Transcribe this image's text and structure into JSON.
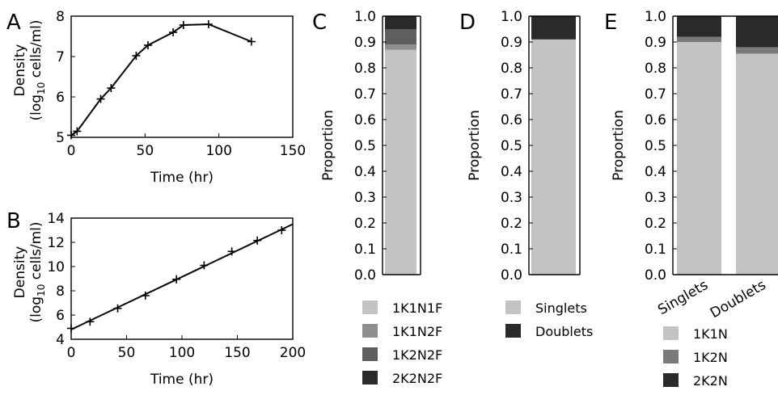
{
  "panels": [
    {
      "id": "A",
      "panel_label": "A",
      "chart_data": {
        "type": "line",
        "xlabel": "Time (hr)",
        "ylabel_main": "Density",
        "ylabel_sub_prefix": "(log",
        "ylabel_sub_sub": "10",
        "ylabel_sub_suffix": " cells/ml)",
        "xlim": [
          0,
          150
        ],
        "ylim": [
          5,
          8
        ],
        "xticks": [
          0,
          50,
          100,
          150
        ],
        "yticks": [
          5,
          6,
          7,
          8
        ],
        "marker": "plus",
        "x": [
          0,
          4,
          20,
          27,
          44,
          52,
          69,
          76,
          93,
          122
        ],
        "y": [
          5.05,
          5.15,
          5.95,
          6.22,
          7.02,
          7.28,
          7.6,
          7.78,
          7.8,
          7.37
        ]
      }
    },
    {
      "id": "B",
      "panel_label": "B",
      "chart_data": {
        "type": "line",
        "xlabel": "Time (hr)",
        "ylabel_main": "Density",
        "ylabel_sub_prefix": "(log",
        "ylabel_sub_sub": "10",
        "ylabel_sub_suffix": " cells/ml)",
        "xlim": [
          0,
          200
        ],
        "ylim": [
          4,
          14
        ],
        "xticks": [
          0,
          50,
          100,
          150,
          200
        ],
        "yticks": [
          4,
          6,
          8,
          10,
          12,
          14
        ],
        "marker": "plus",
        "x": [
          0,
          17,
          42,
          67,
          95,
          120,
          145,
          168,
          190
        ],
        "y": [
          4.9,
          5.45,
          6.55,
          7.6,
          8.95,
          10.1,
          11.25,
          12.15,
          13.0
        ],
        "fit_line": {
          "x": [
            0,
            200
          ],
          "y": [
            4.8,
            13.5
          ]
        }
      }
    },
    {
      "id": "C",
      "panel_label": "C",
      "chart_data": {
        "type": "bar",
        "stacked": true,
        "ylabel": "Proportion",
        "ylim": [
          0,
          1
        ],
        "yticks": [
          "0.0",
          "0.1",
          "0.2",
          "0.3",
          "0.4",
          "0.5",
          "0.6",
          "0.7",
          "0.8",
          "0.9",
          "1.0"
        ],
        "categories": [
          ""
        ],
        "series": [
          {
            "name": "1K1N1F",
            "color": "#c3c3c3",
            "values": [
              0.87
            ]
          },
          {
            "name": "1K1N2F",
            "color": "#8e8e8e",
            "values": [
              0.02
            ]
          },
          {
            "name": "1K2N2F",
            "color": "#5e5e5e",
            "values": [
              0.06
            ]
          },
          {
            "name": "2K2N2F",
            "color": "#2a2a2a",
            "values": [
              0.05
            ]
          }
        ]
      }
    },
    {
      "id": "D",
      "panel_label": "D",
      "chart_data": {
        "type": "bar",
        "stacked": true,
        "ylabel": "Proportion",
        "ylim": [
          0,
          1
        ],
        "yticks": [
          "0.0",
          "0.1",
          "0.2",
          "0.3",
          "0.4",
          "0.5",
          "0.6",
          "0.7",
          "0.8",
          "0.9",
          "1.0"
        ],
        "categories": [
          ""
        ],
        "series": [
          {
            "name": "Singlets",
            "color": "#c3c3c3",
            "values": [
              0.91
            ]
          },
          {
            "name": "Doublets",
            "color": "#2a2a2a",
            "values": [
              0.09
            ]
          }
        ]
      }
    },
    {
      "id": "E",
      "panel_label": "E",
      "chart_data": {
        "type": "bar",
        "stacked": true,
        "ylabel": "Proportion",
        "ylim": [
          0,
          1
        ],
        "yticks": [
          "0.0",
          "0.1",
          "0.2",
          "0.3",
          "0.4",
          "0.5",
          "0.6",
          "0.7",
          "0.8",
          "0.9",
          "1.0"
        ],
        "categories": [
          "Singlets",
          "Doublets"
        ],
        "series": [
          {
            "name": "1K1N",
            "color": "#c3c3c3",
            "values": [
              0.9,
              0.855
            ]
          },
          {
            "name": "1K2N",
            "color": "#7a7a7a",
            "values": [
              0.02,
              0.025
            ]
          },
          {
            "name": "2K2N",
            "color": "#2a2a2a",
            "values": [
              0.08,
              0.12
            ]
          }
        ]
      }
    }
  ]
}
